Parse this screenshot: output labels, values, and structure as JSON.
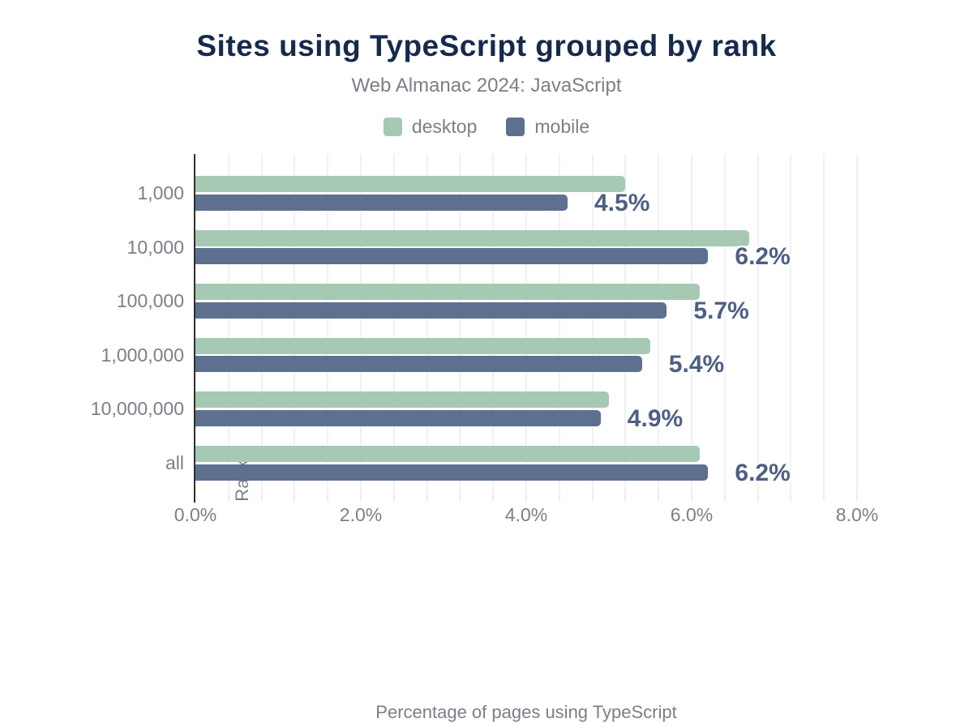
{
  "header": {
    "title": "Sites using TypeScript grouped by rank",
    "subtitle": "Web Almanac 2024: JavaScript"
  },
  "legend": [
    {
      "label": "desktop",
      "color": "#a6c9b4"
    },
    {
      "label": "mobile",
      "color": "#5e7090"
    }
  ],
  "chart_data": {
    "type": "bar",
    "orientation": "horizontal",
    "title": "Sites using TypeScript grouped by rank",
    "subtitle": "Web Almanac 2024: JavaScript",
    "categories": [
      "1,000",
      "10,000",
      "100,000",
      "1,000,000",
      "10,000,000",
      "all"
    ],
    "series": [
      {
        "name": "desktop",
        "color": "#a6c9b4",
        "values": [
          5.2,
          6.7,
          6.1,
          5.5,
          5.0,
          6.1
        ]
      },
      {
        "name": "mobile",
        "color": "#5e7090",
        "values": [
          4.5,
          6.2,
          5.7,
          5.4,
          4.9,
          6.2
        ]
      }
    ],
    "data_labels": {
      "series": "mobile",
      "texts": [
        "4.5%",
        "6.2%",
        "5.7%",
        "5.4%",
        "4.9%",
        "6.2%"
      ]
    },
    "xlabel": "Percentage of pages using TypeScript",
    "ylabel": "Rank",
    "xlim": [
      0,
      8
    ],
    "x_ticks": [
      {
        "value": 0,
        "label": "0.0%"
      },
      {
        "value": 2,
        "label": "2.0%"
      },
      {
        "value": 4,
        "label": "4.0%"
      },
      {
        "value": 6,
        "label": "6.0%"
      },
      {
        "value": 8,
        "label": "8.0%"
      }
    ],
    "grid": {
      "vertical_minor_step": 0.4,
      "horizontal": false
    },
    "legend_position": "top"
  },
  "colors": {
    "title": "#172a4d",
    "muted_text": "#7b7f87",
    "data_label": "#4e5f82",
    "axis_line": "#2e2e2e",
    "gridline": "#f1f1f4",
    "background": "#ffffff"
  }
}
